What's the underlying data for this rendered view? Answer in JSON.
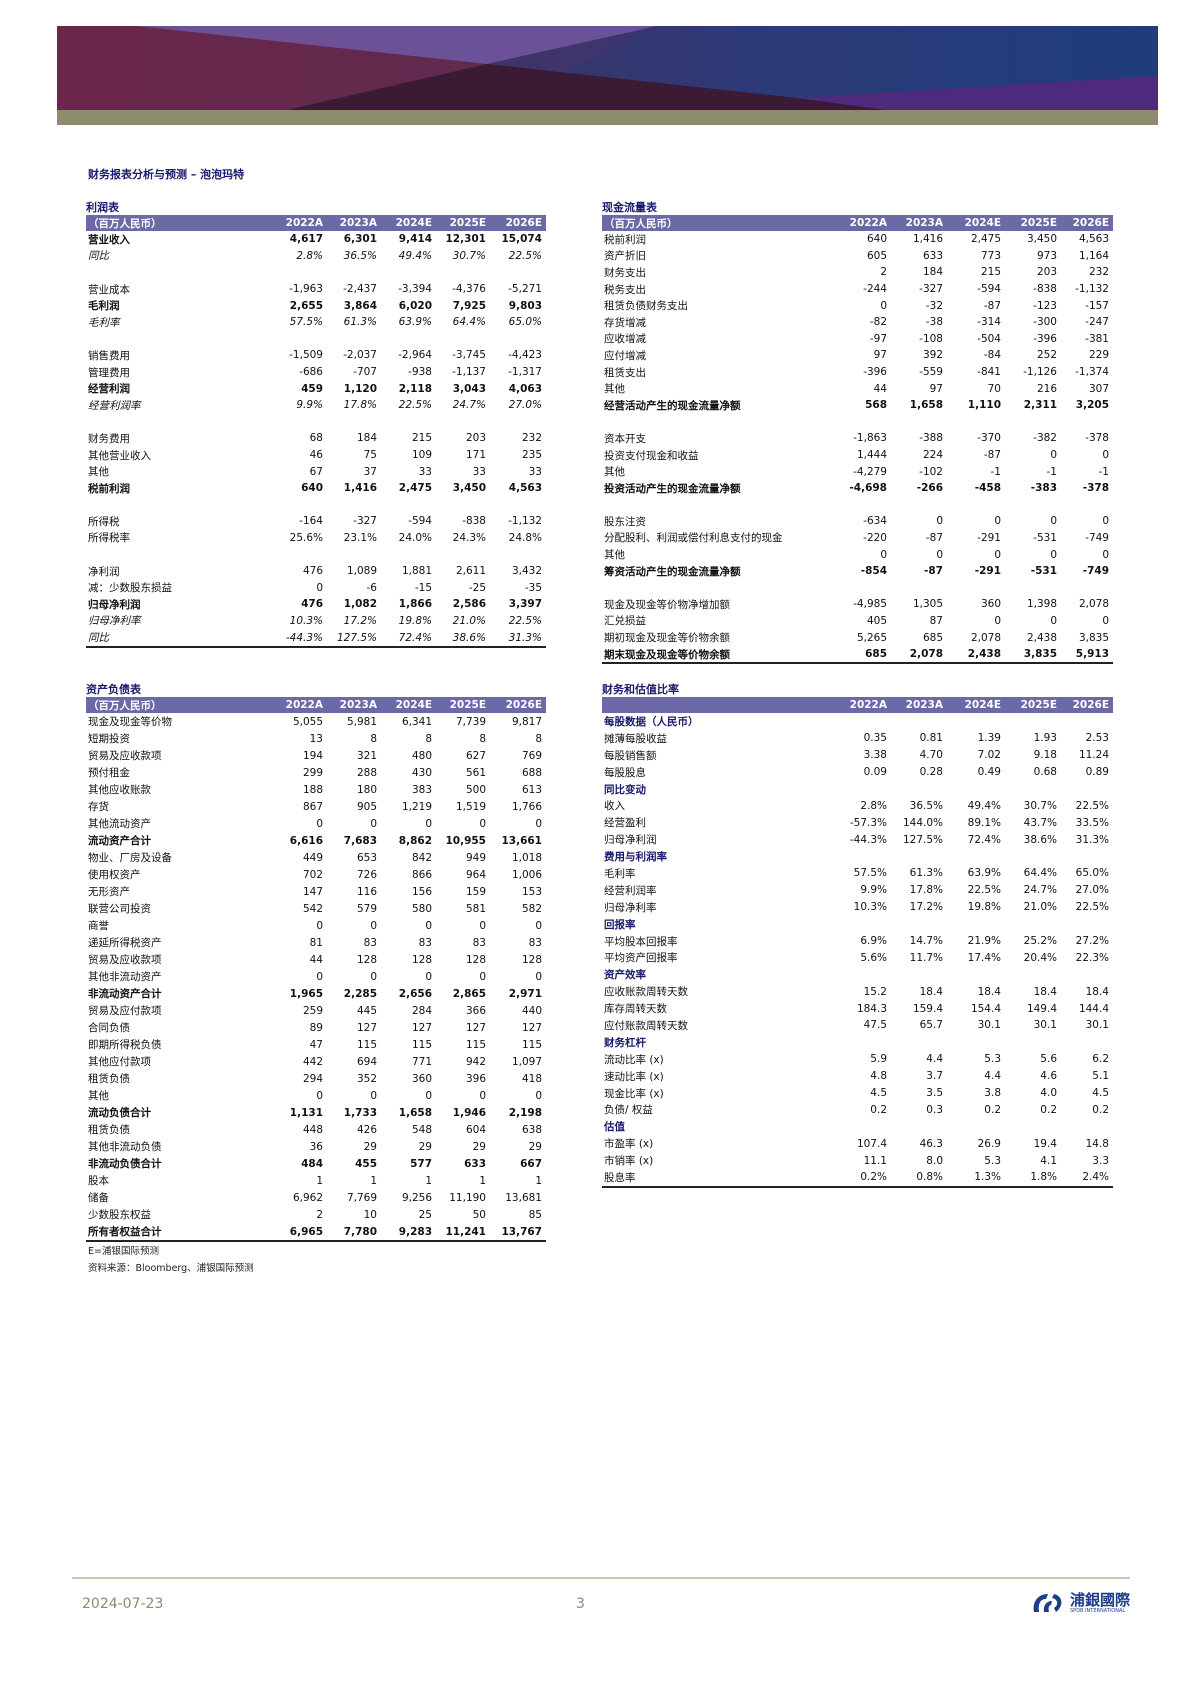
{
  "document": {
    "title": "财务报表分析与预测 – 泡泡玛特",
    "note_estimate": "E=浦银国际预测",
    "note_source": "资料来源：Bloomberg、浦银国际预测"
  },
  "footer": {
    "date": "2024-07-23",
    "page": "3",
    "logo_cn": "浦銀國際",
    "logo_en": "SPDB INTERNATIONAL"
  },
  "colors": {
    "header_band": "#6b6aa6",
    "section_text": "#1a1a6e",
    "footer_text": "#8d8a6e"
  },
  "income": {
    "caption": "利润表",
    "unit": "（百万人民币）",
    "years": [
      "2022A",
      "2023A",
      "2024E",
      "2025E",
      "2026E"
    ],
    "rows": [
      {
        "label": "营业收入",
        "style": "b",
        "values": [
          "4,617",
          "6,301",
          "9,414",
          "12,301",
          "15,074"
        ]
      },
      {
        "label": "同比",
        "style": "i",
        "values": [
          "2.8%",
          "36.5%",
          "49.4%",
          "30.7%",
          "22.5%"
        ]
      },
      {
        "label": null
      },
      {
        "label": "营业成本",
        "style": "",
        "values": [
          "-1,963",
          "-2,437",
          "-3,394",
          "-4,376",
          "-5,271"
        ]
      },
      {
        "label": "毛利润",
        "style": "b",
        "values": [
          "2,655",
          "3,864",
          "6,020",
          "7,925",
          "9,803"
        ]
      },
      {
        "label": "毛利率",
        "style": "i",
        "values": [
          "57.5%",
          "61.3%",
          "63.9%",
          "64.4%",
          "65.0%"
        ]
      },
      {
        "label": null
      },
      {
        "label": "销售费用",
        "style": "",
        "values": [
          "-1,509",
          "-2,037",
          "-2,964",
          "-3,745",
          "-4,423"
        ]
      },
      {
        "label": "管理费用",
        "style": "",
        "values": [
          "-686",
          "-707",
          "-938",
          "-1,137",
          "-1,317"
        ]
      },
      {
        "label": "经营利润",
        "style": "b",
        "values": [
          "459",
          "1,120",
          "2,118",
          "3,043",
          "4,063"
        ]
      },
      {
        "label": "经营利润率",
        "style": "i",
        "values": [
          "9.9%",
          "17.8%",
          "22.5%",
          "24.7%",
          "27.0%"
        ]
      },
      {
        "label": null
      },
      {
        "label": "财务费用",
        "style": "",
        "values": [
          "68",
          "184",
          "215",
          "203",
          "232"
        ]
      },
      {
        "label": "其他营业收入",
        "style": "",
        "values": [
          "46",
          "75",
          "109",
          "171",
          "235"
        ]
      },
      {
        "label": "其他",
        "style": "",
        "values": [
          "67",
          "37",
          "33",
          "33",
          "33"
        ]
      },
      {
        "label": "税前利润",
        "style": "b",
        "values": [
          "640",
          "1,416",
          "2,475",
          "3,450",
          "4,563"
        ]
      },
      {
        "label": null
      },
      {
        "label": "所得税",
        "style": "",
        "values": [
          "-164",
          "-327",
          "-594",
          "-838",
          "-1,132"
        ]
      },
      {
        "label": "所得税率",
        "style": "",
        "values": [
          "25.6%",
          "23.1%",
          "24.0%",
          "24.3%",
          "24.8%"
        ]
      },
      {
        "label": null
      },
      {
        "label": "净利润",
        "style": "",
        "values": [
          "476",
          "1,089",
          "1,881",
          "2,611",
          "3,432"
        ]
      },
      {
        "label": "减：少数股东损益",
        "style": "",
        "values": [
          "0",
          "-6",
          "-15",
          "-25",
          "-35"
        ]
      },
      {
        "label": "归母净利润",
        "style": "b",
        "values": [
          "476",
          "1,082",
          "1,866",
          "2,586",
          "3,397"
        ]
      },
      {
        "label": "归母净利率",
        "style": "i",
        "values": [
          "10.3%",
          "17.2%",
          "19.8%",
          "21.0%",
          "22.5%"
        ]
      },
      {
        "label": "同比",
        "style": "i",
        "values": [
          "-44.3%",
          "127.5%",
          "72.4%",
          "38.6%",
          "31.3%"
        ]
      }
    ]
  },
  "cashflow": {
    "caption": "现金流量表",
    "unit": "（百万人民币）",
    "years": [
      "2022A",
      "2023A",
      "2024E",
      "2025E",
      "2026E"
    ],
    "rows": [
      {
        "label": "税前利润",
        "style": "",
        "values": [
          "640",
          "1,416",
          "2,475",
          "3,450",
          "4,563"
        ]
      },
      {
        "label": "资产折旧",
        "style": "",
        "values": [
          "605",
          "633",
          "773",
          "973",
          "1,164"
        ]
      },
      {
        "label": "财务支出",
        "style": "",
        "values": [
          "2",
          "184",
          "215",
          "203",
          "232"
        ]
      },
      {
        "label": "税务支出",
        "style": "",
        "values": [
          "-244",
          "-327",
          "-594",
          "-838",
          "-1,132"
        ]
      },
      {
        "label": "租赁负债财务支出",
        "style": "",
        "values": [
          "0",
          "-32",
          "-87",
          "-123",
          "-157"
        ]
      },
      {
        "label": "存货增减",
        "style": "",
        "values": [
          "-82",
          "-38",
          "-314",
          "-300",
          "-247"
        ]
      },
      {
        "label": "应收增减",
        "style": "",
        "values": [
          "-97",
          "-108",
          "-504",
          "-396",
          "-381"
        ]
      },
      {
        "label": "应付增减",
        "style": "",
        "values": [
          "97",
          "392",
          "-84",
          "252",
          "229"
        ]
      },
      {
        "label": "租赁支出",
        "style": "",
        "values": [
          "-396",
          "-559",
          "-841",
          "-1,126",
          "-1,374"
        ]
      },
      {
        "label": "其他",
        "style": "",
        "values": [
          "44",
          "97",
          "70",
          "216",
          "307"
        ]
      },
      {
        "label": "经营活动产生的现金流量净额",
        "style": "b",
        "values": [
          "568",
          "1,658",
          "1,110",
          "2,311",
          "3,205"
        ]
      },
      {
        "label": null
      },
      {
        "label": "资本开支",
        "style": "",
        "values": [
          "-1,863",
          "-388",
          "-370",
          "-382",
          "-378"
        ]
      },
      {
        "label": "投资支付现金和收益",
        "style": "",
        "values": [
          "1,444",
          "224",
          "-87",
          "0",
          "0"
        ]
      },
      {
        "label": "其他",
        "style": "",
        "values": [
          "-4,279",
          "-102",
          "-1",
          "-1",
          "-1"
        ]
      },
      {
        "label": "投资活动产生的现金流量净额",
        "style": "b",
        "values": [
          "-4,698",
          "-266",
          "-458",
          "-383",
          "-378"
        ]
      },
      {
        "label": null
      },
      {
        "label": "股东注资",
        "style": "",
        "values": [
          "-634",
          "0",
          "0",
          "0",
          "0"
        ]
      },
      {
        "label": "分配股利、利润或偿付利息支付的现金",
        "style": "",
        "values": [
          "-220",
          "-87",
          "-291",
          "-531",
          "-749"
        ]
      },
      {
        "label": "其他",
        "style": "",
        "values": [
          "0",
          "0",
          "0",
          "0",
          "0"
        ]
      },
      {
        "label": "筹资活动产生的现金流量净额",
        "style": "b",
        "values": [
          "-854",
          "-87",
          "-291",
          "-531",
          "-749"
        ]
      },
      {
        "label": null
      },
      {
        "label": "现金及现金等价物净增加额",
        "style": "",
        "values": [
          "-4,985",
          "1,305",
          "360",
          "1,398",
          "2,078"
        ]
      },
      {
        "label": "汇兑损益",
        "style": "",
        "values": [
          "405",
          "87",
          "0",
          "0",
          "0"
        ]
      },
      {
        "label": "期初现金及现金等价物余额",
        "style": "",
        "values": [
          "5,265",
          "685",
          "2,078",
          "2,438",
          "3,835"
        ]
      },
      {
        "label": "期末现金及现金等价物余额",
        "style": "b",
        "values": [
          "685",
          "2,078",
          "2,438",
          "3,835",
          "5,913"
        ]
      }
    ]
  },
  "balance": {
    "caption": "资产负债表",
    "unit": "（百万人民币）",
    "years": [
      "2022A",
      "2023A",
      "2024E",
      "2025E",
      "2026E"
    ],
    "rows": [
      {
        "label": "现金及现金等价物",
        "style": "",
        "values": [
          "5,055",
          "5,981",
          "6,341",
          "7,739",
          "9,817"
        ]
      },
      {
        "label": "短期投资",
        "style": "",
        "values": [
          "13",
          "8",
          "8",
          "8",
          "8"
        ]
      },
      {
        "label": "贸易及应收款项",
        "style": "",
        "values": [
          "194",
          "321",
          "480",
          "627",
          "769"
        ]
      },
      {
        "label": "预付租金",
        "style": "",
        "values": [
          "299",
          "288",
          "430",
          "561",
          "688"
        ]
      },
      {
        "label": "其他应收账款",
        "style": "",
        "values": [
          "188",
          "180",
          "383",
          "500",
          "613"
        ]
      },
      {
        "label": "存货",
        "style": "",
        "values": [
          "867",
          "905",
          "1,219",
          "1,519",
          "1,766"
        ]
      },
      {
        "label": "其他流动资产",
        "style": "",
        "values": [
          "0",
          "0",
          "0",
          "0",
          "0"
        ]
      },
      {
        "label": "流动资产合计",
        "style": "b",
        "values": [
          "6,616",
          "7,683",
          "8,862",
          "10,955",
          "13,661"
        ]
      },
      {
        "label": "物业、厂房及设备",
        "style": "",
        "values": [
          "449",
          "653",
          "842",
          "949",
          "1,018"
        ]
      },
      {
        "label": "使用权资产",
        "style": "",
        "values": [
          "702",
          "726",
          "866",
          "964",
          "1,006"
        ]
      },
      {
        "label": "无形资产",
        "style": "",
        "values": [
          "147",
          "116",
          "156",
          "159",
          "153"
        ]
      },
      {
        "label": "联营公司投资",
        "style": "",
        "values": [
          "542",
          "579",
          "580",
          "581",
          "582"
        ]
      },
      {
        "label": "商誉",
        "style": "",
        "values": [
          "0",
          "0",
          "0",
          "0",
          "0"
        ]
      },
      {
        "label": "递延所得税资产",
        "style": "",
        "values": [
          "81",
          "83",
          "83",
          "83",
          "83"
        ]
      },
      {
        "label": "贸易及应收款项",
        "style": "",
        "values": [
          "44",
          "128",
          "128",
          "128",
          "128"
        ]
      },
      {
        "label": "其他非流动资产",
        "style": "",
        "values": [
          "0",
          "0",
          "0",
          "0",
          "0"
        ]
      },
      {
        "label": "非流动资产合计",
        "style": "b",
        "values": [
          "1,965",
          "2,285",
          "2,656",
          "2,865",
          "2,971"
        ]
      },
      {
        "label": "贸易及应付款项",
        "style": "",
        "values": [
          "259",
          "445",
          "284",
          "366",
          "440"
        ]
      },
      {
        "label": "合同负债",
        "style": "",
        "values": [
          "89",
          "127",
          "127",
          "127",
          "127"
        ]
      },
      {
        "label": "即期所得税负债",
        "style": "",
        "values": [
          "47",
          "115",
          "115",
          "115",
          "115"
        ]
      },
      {
        "label": "其他应付款项",
        "style": "",
        "values": [
          "442",
          "694",
          "771",
          "942",
          "1,097"
        ]
      },
      {
        "label": "租赁负债",
        "style": "",
        "values": [
          "294",
          "352",
          "360",
          "396",
          "418"
        ]
      },
      {
        "label": "其他",
        "style": "",
        "values": [
          "0",
          "0",
          "0",
          "0",
          "0"
        ]
      },
      {
        "label": "流动负债合计",
        "style": "b",
        "values": [
          "1,131",
          "1,733",
          "1,658",
          "1,946",
          "2,198"
        ]
      },
      {
        "label": "租赁负债",
        "style": "",
        "values": [
          "448",
          "426",
          "548",
          "604",
          "638"
        ]
      },
      {
        "label": "其他非流动负债",
        "style": "",
        "values": [
          "36",
          "29",
          "29",
          "29",
          "29"
        ]
      },
      {
        "label": "非流动负债合计",
        "style": "b",
        "values": [
          "484",
          "455",
          "577",
          "633",
          "667"
        ]
      },
      {
        "label": "股本",
        "style": "",
        "values": [
          "1",
          "1",
          "1",
          "1",
          "1"
        ]
      },
      {
        "label": "储备",
        "style": "",
        "values": [
          "6,962",
          "7,769",
          "9,256",
          "11,190",
          "13,681"
        ]
      },
      {
        "label": "少数股东权益",
        "style": "",
        "values": [
          "2",
          "10",
          "25",
          "50",
          "85"
        ]
      },
      {
        "label": "所有者权益合计",
        "style": "b",
        "values": [
          "6,965",
          "7,780",
          "9,283",
          "11,241",
          "13,767"
        ]
      }
    ]
  },
  "ratios": {
    "caption": "财务和估值比率",
    "unit": "",
    "years": [
      "2022A",
      "2023A",
      "2024E",
      "2025E",
      "2026E"
    ],
    "rows": [
      {
        "label": "每股数据（人民币）",
        "style": "s",
        "values": []
      },
      {
        "label": "摊薄每股收益",
        "style": "",
        "values": [
          "0.35",
          "0.81",
          "1.39",
          "1.93",
          "2.53"
        ]
      },
      {
        "label": "每股销售额",
        "style": "",
        "values": [
          "3.38",
          "4.70",
          "7.02",
          "9.18",
          "11.24"
        ]
      },
      {
        "label": "每股股息",
        "style": "",
        "values": [
          "0.09",
          "0.28",
          "0.49",
          "0.68",
          "0.89"
        ]
      },
      {
        "label": "同比变动",
        "style": "s",
        "values": []
      },
      {
        "label": "收入",
        "style": "",
        "values": [
          "2.8%",
          "36.5%",
          "49.4%",
          "30.7%",
          "22.5%"
        ]
      },
      {
        "label": "经营盈利",
        "style": "",
        "values": [
          "-57.3%",
          "144.0%",
          "89.1%",
          "43.7%",
          "33.5%"
        ]
      },
      {
        "label": "归母净利润",
        "style": "",
        "values": [
          "-44.3%",
          "127.5%",
          "72.4%",
          "38.6%",
          "31.3%"
        ]
      },
      {
        "label": "费用与利润率",
        "style": "s",
        "values": []
      },
      {
        "label": "毛利率",
        "style": "",
        "values": [
          "57.5%",
          "61.3%",
          "63.9%",
          "64.4%",
          "65.0%"
        ]
      },
      {
        "label": "经营利润率",
        "style": "",
        "values": [
          "9.9%",
          "17.8%",
          "22.5%",
          "24.7%",
          "27.0%"
        ]
      },
      {
        "label": "归母净利率",
        "style": "",
        "values": [
          "10.3%",
          "17.2%",
          "19.8%",
          "21.0%",
          "22.5%"
        ]
      },
      {
        "label": "回报率",
        "style": "s",
        "values": []
      },
      {
        "label": "平均股本回报率",
        "style": "",
        "values": [
          "6.9%",
          "14.7%",
          "21.9%",
          "25.2%",
          "27.2%"
        ]
      },
      {
        "label": "平均资产回报率",
        "style": "",
        "values": [
          "5.6%",
          "11.7%",
          "17.4%",
          "20.4%",
          "22.3%"
        ]
      },
      {
        "label": "资产效率",
        "style": "s",
        "values": []
      },
      {
        "label": "应收账款周转天数",
        "style": "",
        "values": [
          "15.2",
          "18.4",
          "18.4",
          "18.4",
          "18.4"
        ]
      },
      {
        "label": "库存周转天数",
        "style": "",
        "values": [
          "184.3",
          "159.4",
          "154.4",
          "149.4",
          "144.4"
        ]
      },
      {
        "label": "应付账款周转天数",
        "style": "",
        "values": [
          "47.5",
          "65.7",
          "30.1",
          "30.1",
          "30.1"
        ]
      },
      {
        "label": "财务杠杆",
        "style": "s",
        "values": []
      },
      {
        "label": "流动比率 (x)",
        "style": "",
        "values": [
          "5.9",
          "4.4",
          "5.3",
          "5.6",
          "6.2"
        ]
      },
      {
        "label": "速动比率 (x)",
        "style": "",
        "values": [
          "4.8",
          "3.7",
          "4.4",
          "4.6",
          "5.1"
        ]
      },
      {
        "label": "现金比率 (x)",
        "style": "",
        "values": [
          "4.5",
          "3.5",
          "3.8",
          "4.0",
          "4.5"
        ]
      },
      {
        "label": "负债/ 权益",
        "style": "",
        "values": [
          "0.2",
          "0.3",
          "0.2",
          "0.2",
          "0.2"
        ]
      },
      {
        "label": "估值",
        "style": "s",
        "values": []
      },
      {
        "label": "市盈率 (x)",
        "style": "",
        "values": [
          "107.4",
          "46.3",
          "26.9",
          "19.4",
          "14.8"
        ]
      },
      {
        "label": "市销率 (x)",
        "style": "",
        "values": [
          "11.1",
          "8.0",
          "5.3",
          "4.1",
          "3.3"
        ]
      },
      {
        "label": "股息率",
        "style": "",
        "values": [
          "0.2%",
          "0.8%",
          "1.3%",
          "1.8%",
          "2.4%"
        ]
      }
    ]
  }
}
